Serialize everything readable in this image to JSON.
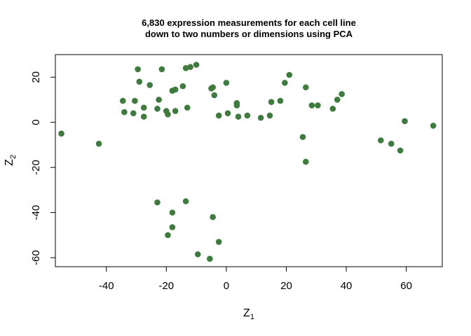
{
  "chart_data": {
    "type": "scatter",
    "title": [
      "6,830 expression measurements for each cell line",
      "down to two numbers or dimensions using PCA"
    ],
    "xlabel": {
      "main": "Z",
      "sub": "1"
    },
    "ylabel": {
      "main": "Z",
      "sub": "2"
    },
    "xlim": [
      -57,
      72
    ],
    "ylim": [
      -64,
      30
    ],
    "x_ticks": [
      "-40",
      "-20",
      "0",
      "20",
      "40",
      "60"
    ],
    "y_ticks": [
      "-60",
      "-40",
      "-20",
      "0",
      "20"
    ],
    "grid": false,
    "point_color": "#3f7a3f",
    "points": [
      {
        "x": -55,
        "y": -5
      },
      {
        "x": -42.5,
        "y": -9.5
      },
      {
        "x": -34.5,
        "y": 9.5
      },
      {
        "x": -34,
        "y": 4.5
      },
      {
        "x": -31,
        "y": 4
      },
      {
        "x": -30.5,
        "y": 9.5
      },
      {
        "x": -29.5,
        "y": 23.5
      },
      {
        "x": -29,
        "y": 18
      },
      {
        "x": -27.5,
        "y": 6.5
      },
      {
        "x": -27.5,
        "y": 2.5
      },
      {
        "x": -25.5,
        "y": 16.5
      },
      {
        "x": -23,
        "y": 6
      },
      {
        "x": -22.5,
        "y": 10
      },
      {
        "x": -21.5,
        "y": 23.5
      },
      {
        "x": -20,
        "y": 5
      },
      {
        "x": -19.5,
        "y": 3.5
      },
      {
        "x": -18,
        "y": 14
      },
      {
        "x": -17,
        "y": 14.5
      },
      {
        "x": -17,
        "y": 5
      },
      {
        "x": -14.5,
        "y": 16
      },
      {
        "x": -13.5,
        "y": 24
      },
      {
        "x": -13,
        "y": 6.5
      },
      {
        "x": -12,
        "y": 24.5
      },
      {
        "x": -10,
        "y": 25.5
      },
      {
        "x": -5,
        "y": 15
      },
      {
        "x": -4.5,
        "y": 15.5
      },
      {
        "x": -4,
        "y": 12
      },
      {
        "x": -2.5,
        "y": 3
      },
      {
        "x": 0,
        "y": 17.5
      },
      {
        "x": 0.5,
        "y": 4
      },
      {
        "x": 3.5,
        "y": 8.5
      },
      {
        "x": 3.5,
        "y": 7.5
      },
      {
        "x": 4,
        "y": 2.5
      },
      {
        "x": 7,
        "y": 3
      },
      {
        "x": 11.5,
        "y": 2
      },
      {
        "x": 14.5,
        "y": 3
      },
      {
        "x": 15,
        "y": 9
      },
      {
        "x": 18,
        "y": 9.5
      },
      {
        "x": 19.5,
        "y": 17.5
      },
      {
        "x": 21,
        "y": 21
      },
      {
        "x": 25.5,
        "y": -6.5
      },
      {
        "x": 26.5,
        "y": 15.5
      },
      {
        "x": 26.5,
        "y": -17.5
      },
      {
        "x": 28.5,
        "y": 7.5
      },
      {
        "x": 30.5,
        "y": 7.5
      },
      {
        "x": 35.5,
        "y": 6
      },
      {
        "x": 37,
        "y": 10
      },
      {
        "x": 38.5,
        "y": 12.5
      },
      {
        "x": 51.5,
        "y": -8
      },
      {
        "x": 55,
        "y": -9.5
      },
      {
        "x": 58,
        "y": -12.5
      },
      {
        "x": 59.5,
        "y": 0.5
      },
      {
        "x": 69,
        "y": -1.5
      },
      {
        "x": -23,
        "y": -35.5
      },
      {
        "x": -18,
        "y": -40
      },
      {
        "x": -18,
        "y": -46.5
      },
      {
        "x": -19.5,
        "y": -50
      },
      {
        "x": -13.5,
        "y": -35
      },
      {
        "x": -9.5,
        "y": -58.5
      },
      {
        "x": -5.5,
        "y": -60.5
      },
      {
        "x": -4.5,
        "y": -42
      },
      {
        "x": -2.5,
        "y": -53
      }
    ]
  }
}
